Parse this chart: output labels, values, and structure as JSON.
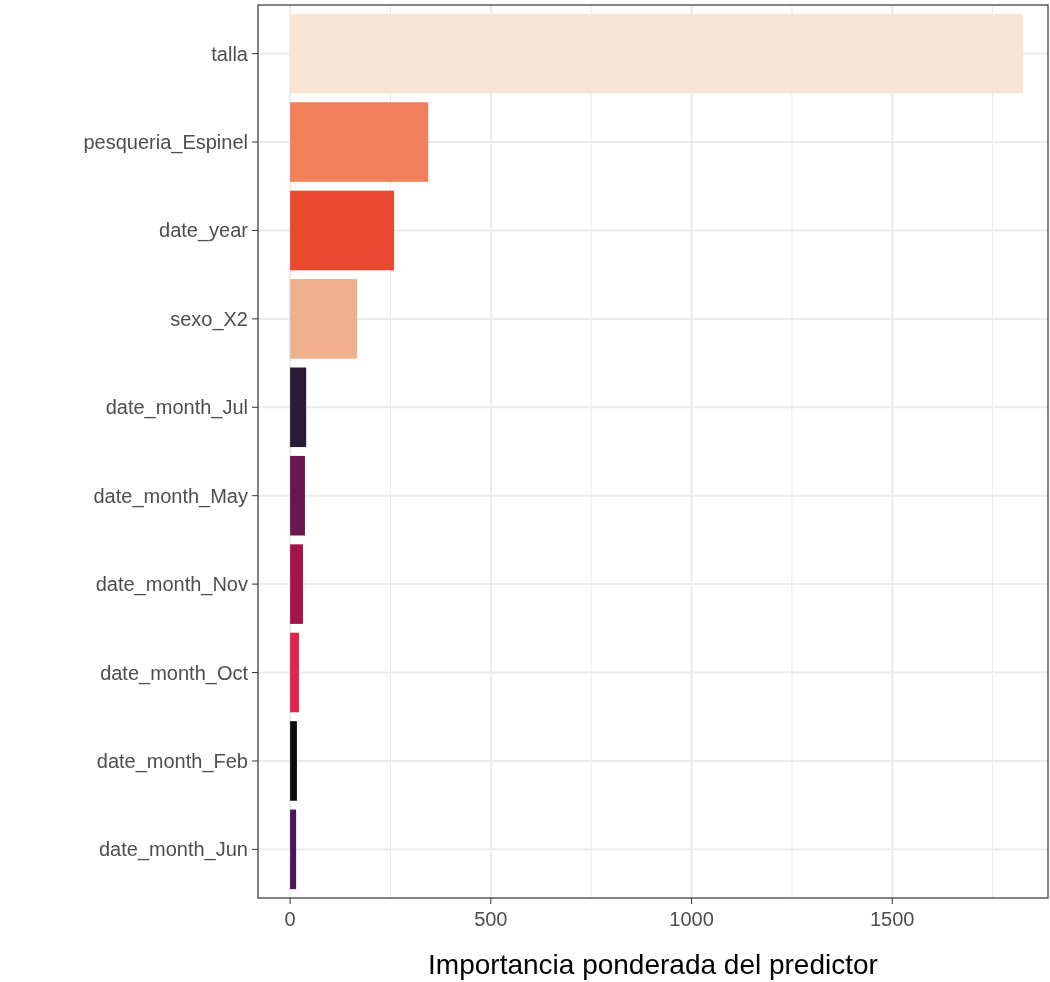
{
  "chart_data": {
    "type": "bar",
    "orientation": "horizontal",
    "xlabel": "Importancia ponderada del predictor",
    "categories": [
      "talla",
      "pesqueria_Espinel",
      "date_year",
      "sexo_X2",
      "date_month_Jul",
      "date_month_May",
      "date_month_Nov",
      "date_month_Oct",
      "date_month_Feb",
      "date_month_Jun"
    ],
    "values": [
      1826,
      344,
      259,
      167,
      40,
      37,
      32,
      22,
      17,
      15
    ],
    "colors": [
      "#f9e4d3",
      "#f07f5a",
      "#e9492f",
      "#f0b08c",
      "#2b1b35",
      "#6b1650",
      "#a51449",
      "#e2234a",
      "#0e0a16",
      "#4b1658"
    ],
    "xlim": [
      -80,
      1888
    ],
    "xticks": [
      0,
      {
        "value": 250,
        "label": null
      },
      500,
      {
        "value": 750,
        "label": null
      },
      1000,
      {
        "value": 1250,
        "label": null
      },
      1500,
      {
        "value": 1750,
        "label": null
      }
    ],
    "grid": true
  }
}
